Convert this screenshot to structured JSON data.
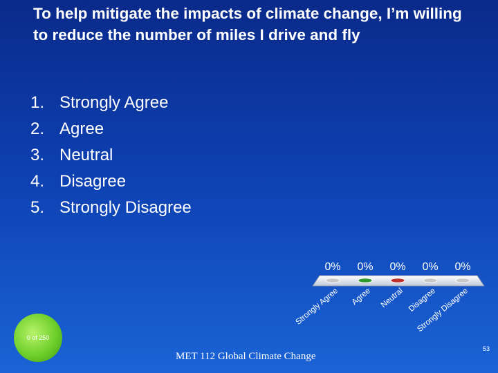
{
  "title": "To help mitigate the impacts of climate change, I’m willing to reduce the number of miles I drive and fly",
  "options": [
    {
      "num": "1.",
      "label": "Strongly Agree"
    },
    {
      "num": "2.",
      "label": "Agree"
    },
    {
      "num": "3.",
      "label": "Neutral"
    },
    {
      "num": "4.",
      "label": "Disagree"
    },
    {
      "num": "5.",
      "label": "Strongly Disagree"
    }
  ],
  "counter": "0 of 250",
  "footer": "MET 112 Global Climate Change",
  "slide_number": "53",
  "chart_data": {
    "type": "bar",
    "categories": [
      "Strongly Agree",
      "Agree",
      "Neutral",
      "Disagree",
      "Strongly Disagree"
    ],
    "values": [
      0,
      0,
      0,
      0,
      0
    ],
    "value_labels": [
      "0%",
      "0%",
      "0%",
      "0%",
      "0%"
    ],
    "bar_colors": [
      "#c8c8c8",
      "#2e9a2e",
      "#c0302a",
      "#c8c8c8",
      "#c8c8c8"
    ],
    "ylim": [
      0,
      100
    ]
  }
}
